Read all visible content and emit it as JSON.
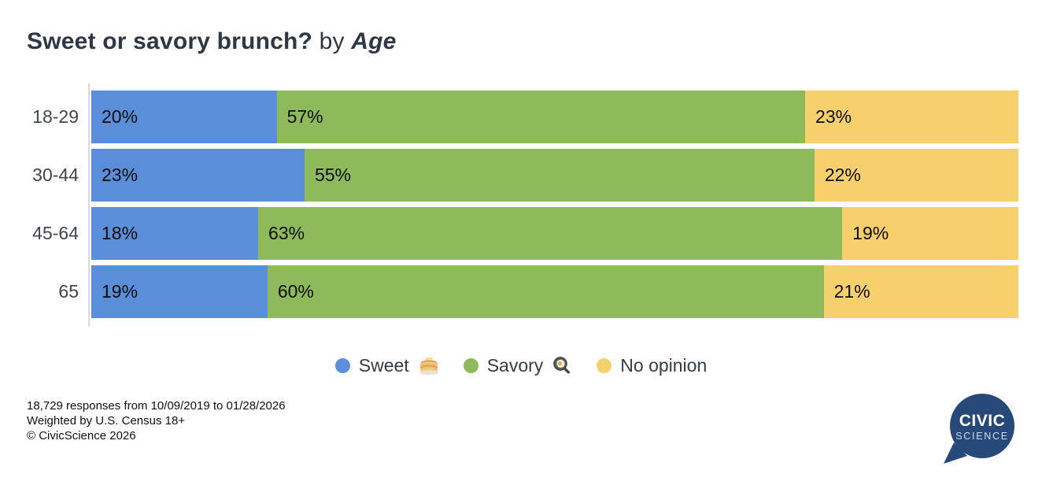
{
  "header": {
    "title_bold": "Sweet or savory brunch?",
    "title_connector": " by ",
    "title_emphasis": "Age"
  },
  "chart_data": {
    "type": "bar",
    "orientation": "horizontal",
    "stacked": true,
    "grid": false,
    "legend_position": "bottom-center",
    "title": "Sweet or savory brunch? by Age",
    "xlabel": "",
    "ylabel": "",
    "xlim": [
      0,
      100
    ],
    "value_format": "percent",
    "categories": [
      "18-29",
      "30-44",
      "45-64",
      "65"
    ],
    "series": [
      {
        "name": "Sweet",
        "color": "#5b8ed8",
        "values": [
          20,
          23,
          18,
          19
        ]
      },
      {
        "name": "Savory",
        "color": "#8eba5c",
        "values": [
          57,
          55,
          63,
          60
        ]
      },
      {
        "name": "No opinion",
        "color": "#f6d06c",
        "values": [
          23,
          22,
          19,
          21
        ]
      }
    ]
  },
  "legend": {
    "items": [
      {
        "label": "Sweet",
        "color": "#5b8ed8",
        "icon": "pancakes-icon"
      },
      {
        "label": "Savory",
        "color": "#8eba5c",
        "icon": "frying-pan-icon"
      },
      {
        "label": "No opinion",
        "color": "#f6d06c",
        "icon": null
      }
    ]
  },
  "footer": {
    "lines": [
      "18,729 responses from 10/09/2019 to 01/28/2026",
      "Weighted by U.S. Census 18+",
      "© CivicScience 2026"
    ]
  },
  "logo": {
    "line1": "CIVIC",
    "line2": "SCIENCE",
    "bubble_color": "#27497a",
    "science_color": "#d3dbe6"
  },
  "colors": {
    "background": "#ffffff",
    "title_text": "#2e3744",
    "axis_line": "#d9d9d9",
    "row_label_text": "#3d4551",
    "segment_label_text": "#0d0d0d"
  }
}
